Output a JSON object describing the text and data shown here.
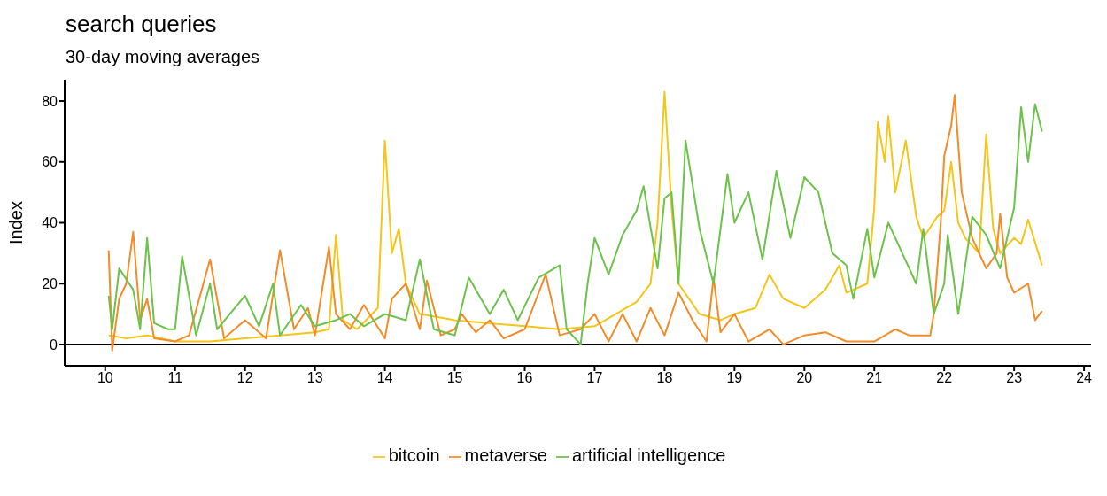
{
  "chart_data": {
    "type": "line",
    "title": "search queries",
    "subtitle": "30-day moving averages",
    "ylabel": "Index",
    "xlim": [
      9.42,
      24.1
    ],
    "xticks": [
      10,
      11,
      12,
      13,
      14,
      15,
      16,
      17,
      18,
      19,
      20,
      21,
      22,
      23,
      24
    ],
    "ylim": [
      -7,
      87
    ],
    "yticks": [
      0,
      20,
      40,
      60,
      80
    ],
    "grid": false,
    "legend": "bottom",
    "marker": "none",
    "line_style": "solid",
    "ref_lines": [
      {
        "axis": "y",
        "value": 0,
        "color": "#000000"
      }
    ],
    "series": [
      {
        "name": "bitcoin",
        "color": "#f5c518",
        "x": [
          10.05,
          10.3,
          10.6,
          11,
          11.5,
          12,
          12.5,
          13,
          13.2,
          13.3,
          13.4,
          13.6,
          13.9,
          14.0,
          14.1,
          14.2,
          14.3,
          14.5,
          15,
          15.5,
          16,
          16.5,
          17,
          17.3,
          17.6,
          17.8,
          17.9,
          18.0,
          18.1,
          18.2,
          18.5,
          18.8,
          19.0,
          19.3,
          19.5,
          19.7,
          20.0,
          20.3,
          20.5,
          20.6,
          20.9,
          21.0,
          21.05,
          21.15,
          21.2,
          21.3,
          21.45,
          21.6,
          21.7,
          21.9,
          22.0,
          22.1,
          22.2,
          22.3,
          22.5,
          22.6,
          22.7,
          22.8,
          23.0,
          23.1,
          23.2,
          23.4
        ],
        "values": [
          3,
          2,
          3,
          1,
          1,
          2,
          3,
          4,
          5,
          36,
          8,
          5,
          12,
          67,
          30,
          38,
          20,
          10,
          8,
          7,
          6,
          5,
          6,
          10,
          14,
          20,
          40,
          83,
          45,
          20,
          10,
          8,
          10,
          12,
          23,
          15,
          12,
          18,
          26,
          17,
          20,
          45,
          73,
          60,
          75,
          50,
          67,
          42,
          35,
          42,
          44,
          60,
          40,
          35,
          30,
          69,
          38,
          30,
          35,
          33,
          41,
          26
        ]
      },
      {
        "name": "metaverse",
        "color": "#f28c28",
        "x": [
          10.05,
          10.1,
          10.2,
          10.3,
          10.4,
          10.5,
          10.6,
          10.7,
          11.0,
          11.2,
          11.5,
          11.7,
          12,
          12.3,
          12.5,
          12.7,
          12.9,
          13.0,
          13.2,
          13.3,
          13.5,
          13.7,
          14,
          14.1,
          14.3,
          14.5,
          14.6,
          14.8,
          15.0,
          15.1,
          15.3,
          15.5,
          15.7,
          16.0,
          16.3,
          16.5,
          16.8,
          17.0,
          17.2,
          17.4,
          17.6,
          17.8,
          18.0,
          18.2,
          18.4,
          18.6,
          18.7,
          18.8,
          19.0,
          19.2,
          19.5,
          19.7,
          20,
          20.3,
          20.6,
          21,
          21.3,
          21.5,
          21.8,
          21.85,
          21.95,
          22.0,
          22.1,
          22.15,
          22.25,
          22.4,
          22.6,
          22.75,
          22.8,
          22.9,
          23.0,
          23.2,
          23.3,
          23.4
        ],
        "values": [
          31,
          -2,
          15,
          20,
          37,
          8,
          15,
          2,
          1,
          3,
          28,
          2,
          8,
          2,
          31,
          5,
          12,
          3,
          32,
          10,
          5,
          13,
          2,
          15,
          20,
          5,
          21,
          3,
          5,
          10,
          4,
          8,
          2,
          5,
          23,
          3,
          5,
          10,
          1,
          10,
          1,
          12,
          3,
          17,
          8,
          1,
          22,
          4,
          10,
          1,
          5,
          0,
          3,
          4,
          1,
          1,
          5,
          3,
          3,
          10,
          40,
          62,
          72,
          82,
          50,
          35,
          25,
          30,
          43,
          22,
          17,
          20,
          8,
          11
        ]
      },
      {
        "name": "artificial intelligence",
        "color": "#6cc24a",
        "x": [
          10.05,
          10.1,
          10.2,
          10.4,
          10.5,
          10.6,
          10.7,
          10.9,
          11.0,
          11.1,
          11.3,
          11.5,
          11.6,
          12,
          12.2,
          12.4,
          12.5,
          12.8,
          13,
          13.3,
          13.5,
          13.7,
          14,
          14.3,
          14.5,
          14.7,
          15,
          15.2,
          15.5,
          15.7,
          15.9,
          16.2,
          16.5,
          16.6,
          16.8,
          16.9,
          17.0,
          17.2,
          17.4,
          17.6,
          17.7,
          17.9,
          18.0,
          18.1,
          18.2,
          18.3,
          18.5,
          18.7,
          18.9,
          19.0,
          19.2,
          19.4,
          19.6,
          19.8,
          20.0,
          20.2,
          20.4,
          20.6,
          20.7,
          20.9,
          21.0,
          21.2,
          21.4,
          21.6,
          21.7,
          21.85,
          22.0,
          22.05,
          22.2,
          22.4,
          22.6,
          22.8,
          23.0,
          23.1,
          23.2,
          23.3,
          23.4
        ],
        "values": [
          16,
          5,
          25,
          18,
          5,
          35,
          7,
          5,
          5,
          29,
          3,
          20,
          5,
          16,
          6,
          20,
          3,
          13,
          6,
          8,
          10,
          6,
          10,
          8,
          28,
          5,
          3,
          22,
          10,
          18,
          8,
          22,
          26,
          5,
          0,
          20,
          35,
          23,
          36,
          44,
          52,
          25,
          48,
          50,
          20,
          67,
          38,
          20,
          56,
          40,
          50,
          28,
          57,
          35,
          55,
          50,
          30,
          26,
          15,
          38,
          22,
          40,
          30,
          20,
          38,
          10,
          20,
          36,
          10,
          42,
          36,
          25,
          45,
          78,
          60,
          79,
          70
        ]
      }
    ]
  }
}
